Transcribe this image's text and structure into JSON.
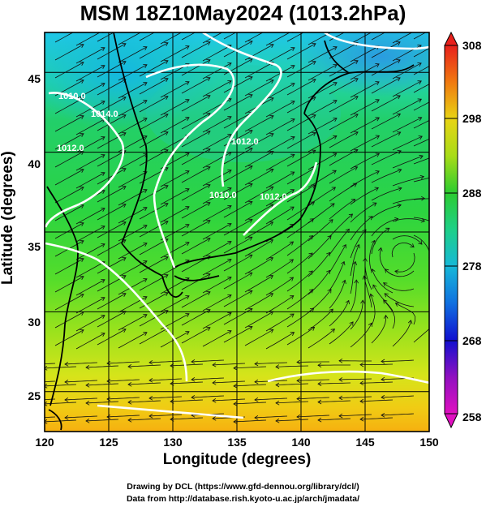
{
  "title": "MSM 18Z10May2024 (1013.2hPa)",
  "axes": {
    "xlabel": "Longitude (degrees)",
    "ylabel": "Latitude  (degrees)",
    "xticks": [
      "120",
      "125",
      "130",
      "135",
      "140",
      "145",
      "150"
    ],
    "yticks": [
      "25",
      "30",
      "35",
      "40",
      "45"
    ]
  },
  "colorbar": {
    "ticks": [
      "308",
      "298",
      "288",
      "278",
      "268",
      "258"
    ]
  },
  "contour_labels": [
    "1010.0",
    "1014.0",
    "1012.0",
    "1012.0",
    "1010.0",
    "1012.0"
  ],
  "footer": {
    "line1": "Drawing by DCL (https://www.gfd-dennou.org/library/dcl/)",
    "line2": "Data from http://database.rish.kyoto-u.ac.jp/arch/jmadata/"
  },
  "chart_data": {
    "type": "heatmap",
    "variable": "temperature (K) with streamlines and pressure contours",
    "xlim": [
      120,
      150
    ],
    "ylim": [
      22.5,
      47.5
    ],
    "colorbar_range": [
      258,
      308
    ],
    "grid": true
  }
}
